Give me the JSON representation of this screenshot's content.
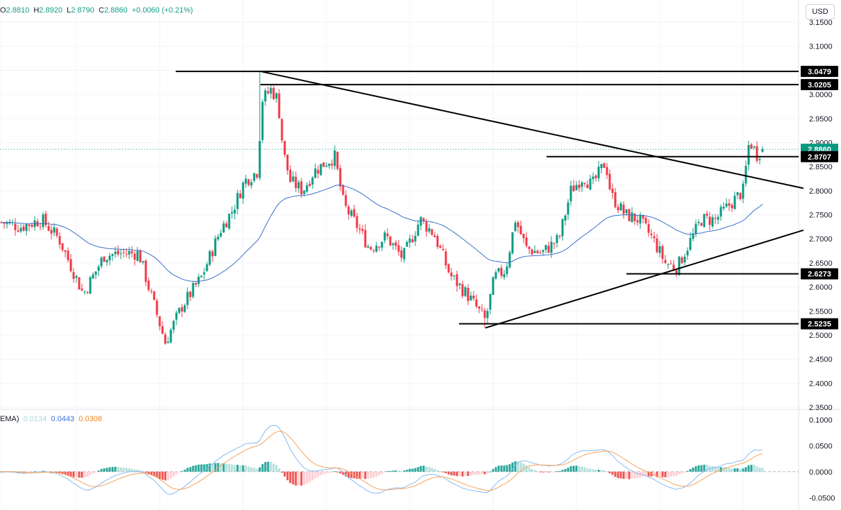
{
  "header": {
    "ohlc": [
      {
        "label": "O",
        "value": "2.8810"
      },
      {
        "label": "H",
        "value": "2.8920"
      },
      {
        "label": "L",
        "value": "2.8790"
      },
      {
        "label": "C",
        "value": "2.8860"
      }
    ],
    "change": "+0.0060 (+0.21%)",
    "currency_button": "USD"
  },
  "macd_legend": {
    "label": "EMA)",
    "values": [
      "0.0134",
      "0.0443",
      "0.0308"
    ],
    "colors": [
      "#a8dcd6",
      "#3a6fd8",
      "#f2831f"
    ]
  },
  "colors": {
    "up": "#089981",
    "down": "#f23645",
    "ema": "#3a6ec9",
    "macd": "#87b9f0",
    "signal": "#f7a35a",
    "trendline": "#000000",
    "last_price_label": "#089981"
  },
  "chart_data": [
    {
      "type": "candlestick",
      "y_ticks": [
        "3.1500",
        "3.1000",
        "3.0500",
        "3.0000",
        "2.9500",
        "2.9000",
        "2.8500",
        "2.8000",
        "2.7500",
        "2.7000",
        "2.6500",
        "2.6000",
        "2.5500",
        "2.5000",
        "2.4500",
        "2.4000",
        "2.3500"
      ],
      "ylim": [
        2.35,
        3.15
      ],
      "price_levels": [
        "3.0479",
        "3.0205",
        "2.8860",
        "2.8707",
        "2.6273",
        "2.5235"
      ],
      "last_price": 2.886,
      "key_points": [
        {
          "label": "peak",
          "value": 3.0479
        },
        {
          "label": "low",
          "value": 2.48
        },
        {
          "label": "low",
          "value": 2.5235
        },
        {
          "label": "low",
          "value": 2.6273
        },
        {
          "label": "close",
          "value": 2.886
        }
      ],
      "trendlines": [
        {
          "from": [
            375,
            3.0479
          ],
          "to": [
            1157,
            2.805
          ]
        },
        {
          "from": [
            699,
            2.515
          ],
          "to": [
            1157,
            2.718
          ]
        }
      ],
      "support_resistance": [
        {
          "value": 3.0479,
          "start": 253
        },
        {
          "value": 3.0205,
          "start": 375
        },
        {
          "value": 2.8707,
          "start": 787
        },
        {
          "value": 2.6273,
          "start": 902
        },
        {
          "value": 2.5235,
          "start": 661
        }
      ]
    },
    {
      "type": "macd",
      "y_ticks": [
        "0.1000",
        "0.0500",
        "0.0000",
        "-0.0500"
      ],
      "ylim": [
        -0.055,
        0.105
      ]
    }
  ]
}
